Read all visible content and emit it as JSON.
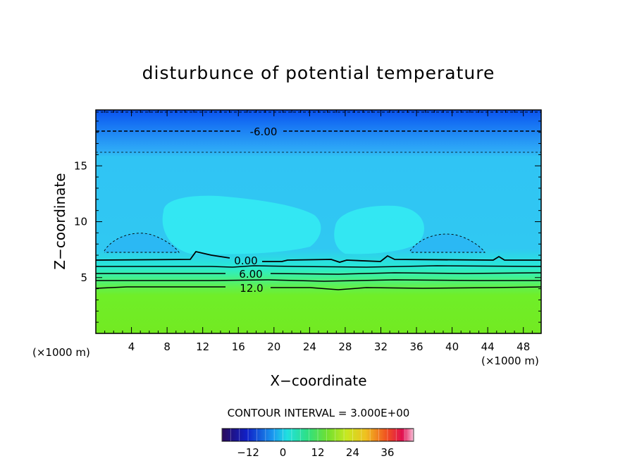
{
  "chart_data": {
    "type": "heatmap",
    "title": "disturbunce of potential temperature",
    "xlabel": "X−coordinate",
    "ylabel": "Z−coordinate",
    "x_unit_left": "(×1000 m)",
    "x_unit_right": "(×1000 m)",
    "xlim": [
      0,
      50
    ],
    "ylim": [
      0,
      20
    ],
    "x_ticks": [
      "4",
      "8",
      "12",
      "16",
      "20",
      "24",
      "28",
      "32",
      "36",
      "40",
      "44",
      "48"
    ],
    "x_tick_values": [
      4,
      8,
      12,
      16,
      20,
      24,
      28,
      32,
      36,
      40,
      44,
      48
    ],
    "y_ticks": [
      "5",
      "10",
      "15"
    ],
    "y_tick_values": [
      5,
      10,
      15
    ],
    "contour_interval_text": "CONTOUR INTERVAL = 3.000E+00",
    "contour_interval": 3.0,
    "contours": [
      {
        "label": "-6.00",
        "value": -6,
        "z": 18.0,
        "style": "dashed"
      },
      {
        "label": "",
        "value": -3,
        "z": 16.2,
        "style": "dashed"
      },
      {
        "label": "",
        "value": -9,
        "z": 19.9,
        "style": "dashed"
      },
      {
        "label": "0.00",
        "value": 0,
        "z": 6.6,
        "style": "solid"
      },
      {
        "label": "6.00",
        "value": 6,
        "z": 5.5,
        "style": "solid"
      },
      {
        "label": "12.0",
        "value": 12,
        "z": 4.2,
        "style": "solid"
      }
    ],
    "colorbar": {
      "ticks": [
        "-12",
        "0",
        "12",
        "24",
        "36"
      ],
      "tick_values": [
        -12,
        0,
        12,
        24,
        36
      ],
      "range": [
        -21,
        45
      ]
    }
  }
}
